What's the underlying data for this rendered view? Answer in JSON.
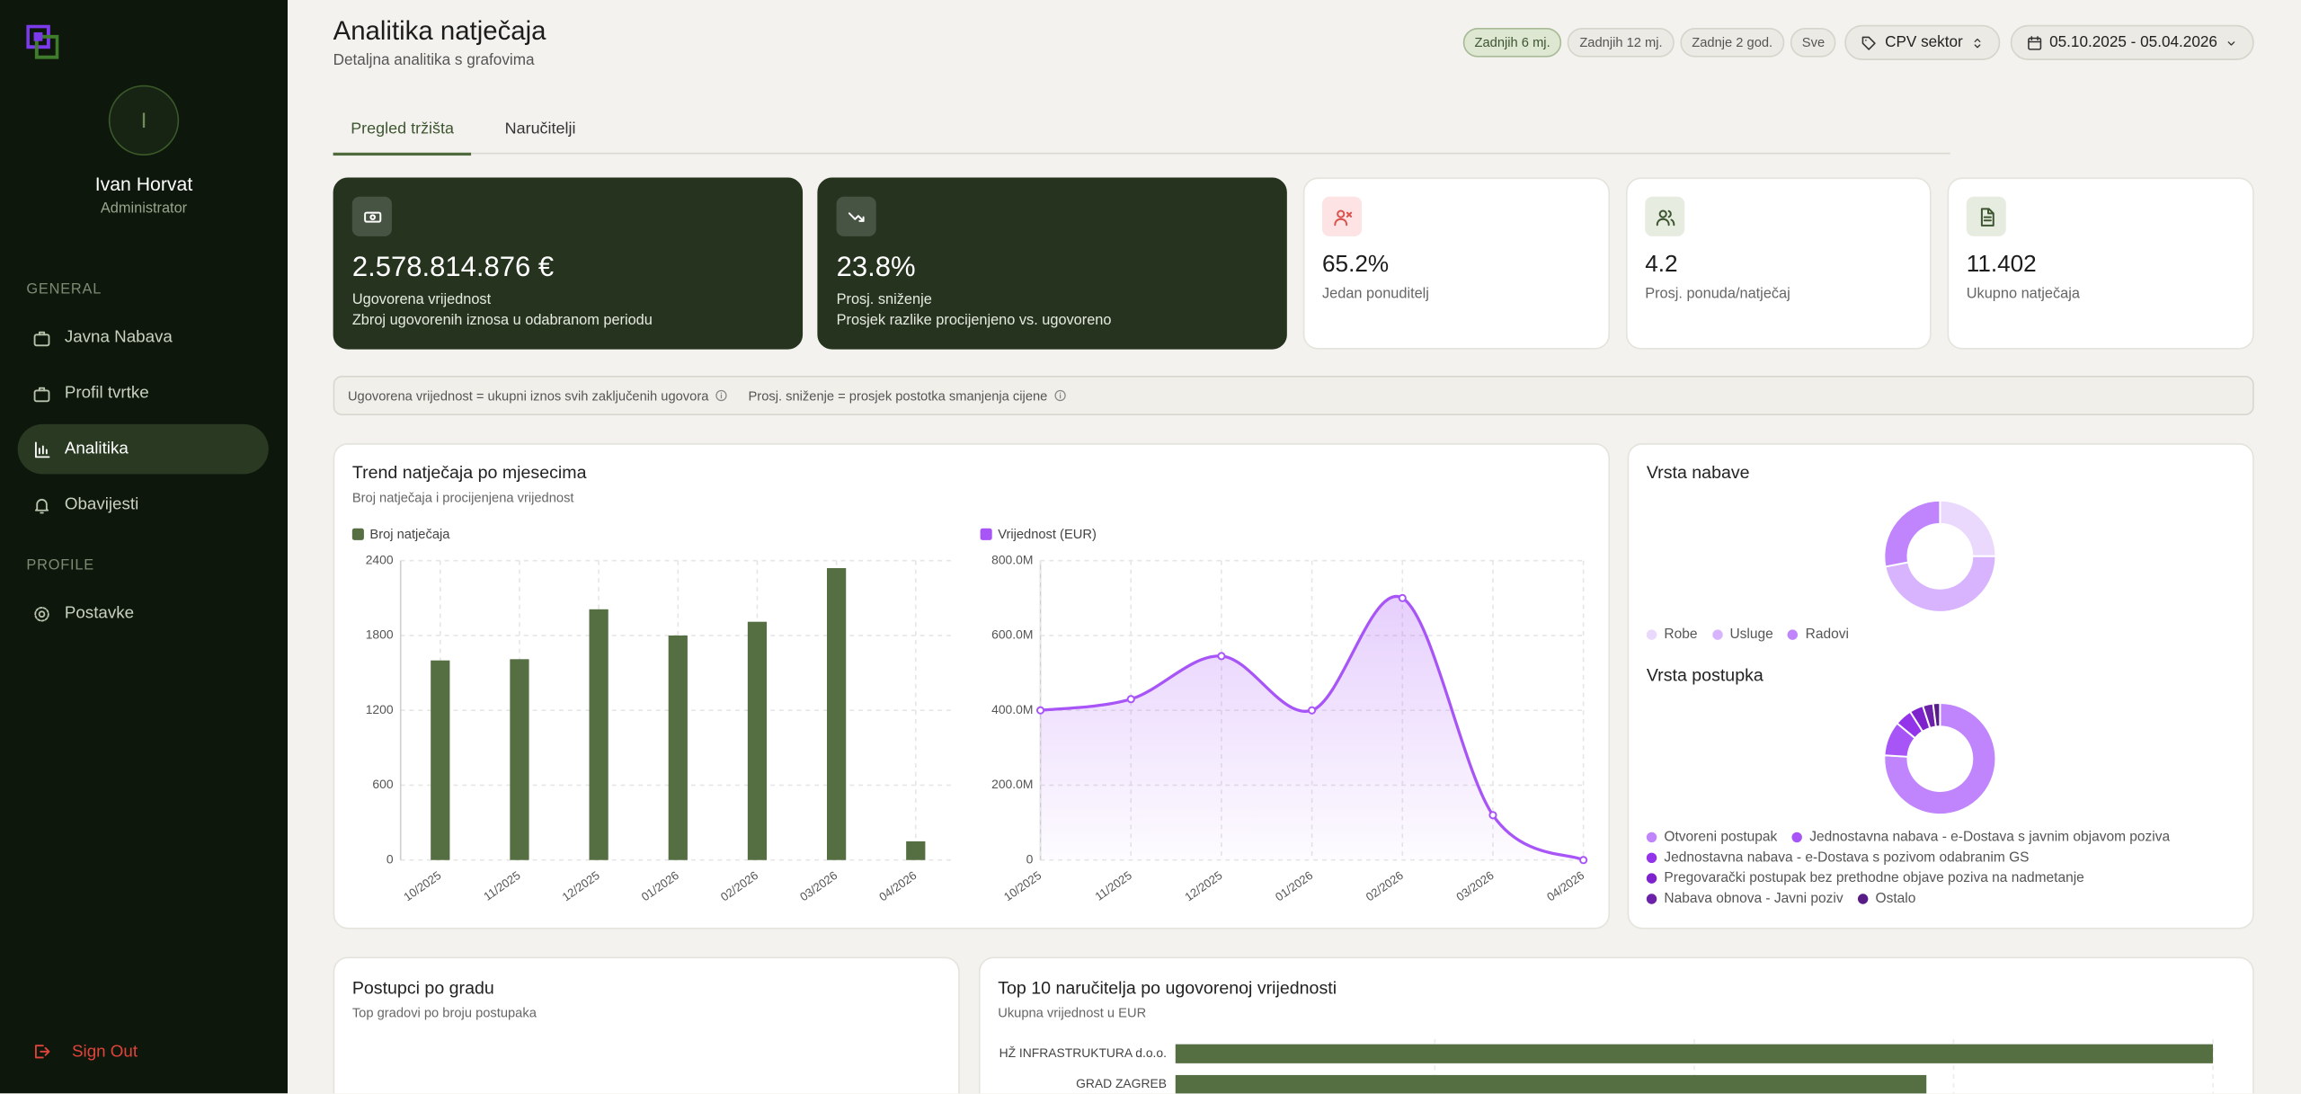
{
  "sidebar": {
    "user": {
      "initial": "I",
      "name": "Ivan Horvat",
      "role": "Administrator"
    },
    "sections": [
      {
        "title": "GENERAL",
        "items": [
          "Javna Nabava",
          "Profil tvrtke",
          "Analitika",
          "Obavijesti"
        ]
      },
      {
        "title": "PROFILE",
        "items": [
          "Postavke"
        ]
      }
    ],
    "active_item": "Analitika",
    "sign_out": "Sign Out"
  },
  "header": {
    "title": "Analitika natječaja",
    "subtitle": "Detaljna analitika s grafovima"
  },
  "filters": {
    "periods": [
      "Zadnjih 6 mj.",
      "Zadnjih 12 mj.",
      "Zadnje 2 god.",
      "Sve"
    ],
    "active_period": "Zadnjih 6 mj.",
    "sector": "CPV sektor",
    "date_range": "05.10.2025 - 05.04.2026"
  },
  "tabs": {
    "items": [
      "Pregled tržišta",
      "Naručitelji"
    ],
    "active": "Pregled tržišta"
  },
  "kpis": [
    {
      "value": "2.578.814.876 €",
      "label": "Ugovorena vrijednost",
      "note": "Zbroj ugovorenih iznosa u odabranom periodu",
      "style": "dark"
    },
    {
      "value": "23.8%",
      "label": "Prosj. sniženje",
      "note": "Prosjek razlike procijenjeno vs. ugovoreno",
      "style": "dark"
    },
    {
      "value": "65.2%",
      "label": "Jedan ponuditelj",
      "style": "light"
    },
    {
      "value": "4.2",
      "label": "Prosj. ponuda/natječaj",
      "style": "light"
    },
    {
      "value": "11.402",
      "label": "Ukupno natječaja",
      "style": "light"
    }
  ],
  "info": [
    "Ugovorena vrijednost = ukupni iznos svih zaključenih ugovora",
    "Prosj. sniženje = prosjek postotka smanjenja cijene"
  ],
  "trend_card": {
    "title": "Trend natječaja po mjesecima",
    "subtitle": "Broj natječaja i procijenjena vrijednost"
  },
  "city_card": {
    "title": "Postupci po gradu",
    "subtitle": "Top gradovi po broju postupaka"
  },
  "chart_data": [
    {
      "type": "bar",
      "categories": [
        "10/2025",
        "11/2025",
        "12/2025",
        "01/2026",
        "02/2026",
        "03/2026",
        "04/2026"
      ],
      "series": [
        {
          "name": "Broj natječaja",
          "color": "#556f43",
          "values": [
            1600,
            1610,
            2010,
            1800,
            1910,
            2340,
            150
          ]
        }
      ],
      "ylim": [
        0,
        2400
      ],
      "yticks": [
        0,
        600,
        1200,
        1800,
        2400
      ],
      "grid": true
    },
    {
      "type": "line",
      "categories": [
        "10/2025",
        "11/2025",
        "12/2025",
        "01/2026",
        "02/2026",
        "03/2026",
        "04/2026"
      ],
      "series": [
        {
          "name": "Vrijednost (EUR)",
          "color": "#a855f7",
          "values": [
            400000000,
            430000000,
            545000000,
            400000000,
            700000000,
            120000000,
            0
          ]
        }
      ],
      "ylim": [
        0,
        800000000
      ],
      "yticks": [
        0,
        {
          "value": 200000000,
          "label": "200.0M"
        },
        {
          "value": 400000000,
          "label": "400.0M"
        },
        {
          "value": 600000000,
          "label": "600.0M"
        },
        {
          "value": 800000000,
          "label": "800.0M"
        }
      ],
      "grid": true,
      "area": true
    },
    {
      "type": "pie",
      "title": "Vrsta nabave",
      "categories": [
        "Robe",
        "Usluge",
        "Radovi"
      ],
      "colors": [
        "#ead9fd",
        "#d8b4fe",
        "#c084fc"
      ],
      "values": [
        25,
        47,
        28
      ],
      "donut": true
    },
    {
      "type": "pie",
      "title": "Vrsta postupka",
      "categories": [
        "Otvoreni postupak",
        "Jednostavna nabava - e-Dostava s javnim objavom poziva",
        "Jednostavna nabava - e-Dostava s pozivom odabranim GS",
        "Pregovarački postupak bez prethodne objave poziva na nadmetanje",
        "Nabava obnova - Javni poziv",
        "Ostalo"
      ],
      "colors": [
        "#c084fc",
        "#a855f7",
        "#9333ea",
        "#7e22ce",
        "#6b21a8",
        "#581c87"
      ],
      "values": [
        76,
        10,
        5,
        4,
        3,
        2
      ],
      "donut": true
    },
    {
      "type": "hbar",
      "title": "Top 10 naručitelja po ugovorenoj vrijednosti",
      "subtitle": "Ukupna vrijednost u EUR",
      "categories": [
        "HŽ INFRASTRUKTURA d.o.o.",
        "GRAD ZAGREB"
      ],
      "values": [
        420000000,
        304000000
      ],
      "color": "#556f43",
      "xlim": [
        0,
        420000000
      ]
    }
  ]
}
